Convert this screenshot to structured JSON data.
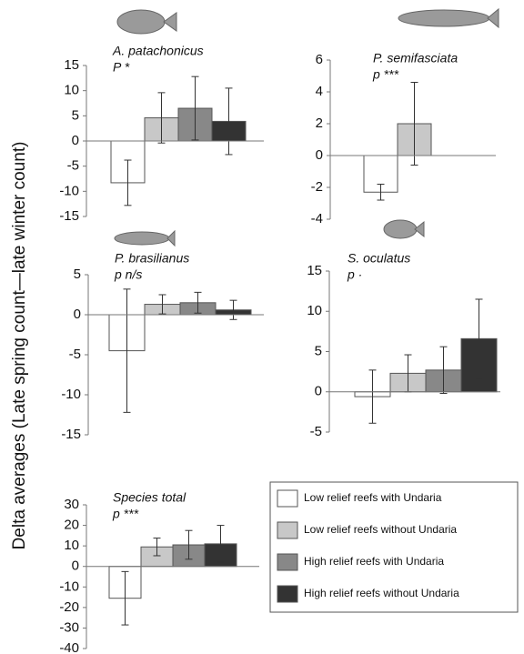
{
  "y_label": "Delta averages (Late spring count—late winter count)",
  "legend": [
    {
      "name": "Low relief reefs with Undaria",
      "color": "#ffffff"
    },
    {
      "name": "Low relief reefs without Undaria",
      "color": "#c8c8c8"
    },
    {
      "name": "High relief reefs with Undaria",
      "color": "#888888"
    },
    {
      "name": "High relief reefs without Undaria",
      "color": "#333333"
    }
  ],
  "chart_data": [
    {
      "type": "bar",
      "title": "A. patachonicus",
      "subtitle": "P *",
      "values": [
        -8.3,
        4.6,
        6.5,
        3.9
      ],
      "errors": [
        4.5,
        5,
        6.3,
        6.6
      ],
      "ylim": [
        -15,
        15
      ],
      "yticks": [
        -15,
        -10,
        -5,
        0,
        5,
        10,
        15
      ]
    },
    {
      "type": "bar",
      "title": "P. semifasciata",
      "subtitle": "p ***",
      "values": [
        -2.3,
        2.0,
        null,
        null
      ],
      "errors": [
        0.5,
        2.6,
        null,
        null
      ],
      "ylim": [
        -4,
        6
      ],
      "yticks": [
        -4,
        -2,
        0,
        2,
        4,
        6
      ]
    },
    {
      "type": "bar",
      "title": "P. brasilianus",
      "subtitle": "p n/s",
      "values": [
        -4.5,
        1.3,
        1.5,
        0.6
      ],
      "errors": [
        7.7,
        1.2,
        1.3,
        1.2
      ],
      "ylim": [
        -15,
        5
      ],
      "yticks": [
        -15,
        -10,
        -5,
        0,
        5
      ]
    },
    {
      "type": "bar",
      "title": "S. oculatus",
      "subtitle": "p ·",
      "values": [
        -0.6,
        2.3,
        2.7,
        6.6
      ],
      "errors": [
        3.3,
        2.3,
        2.9,
        4.9
      ],
      "ylim": [
        -5,
        15
      ],
      "yticks": [
        -5,
        0,
        5,
        10,
        15
      ]
    },
    {
      "type": "bar",
      "title": "Species total",
      "subtitle": "p ***",
      "values": [
        -15.5,
        9.5,
        10.5,
        11
      ],
      "errors": [
        13,
        4.3,
        7,
        9
      ],
      "ylim": [
        -40,
        30
      ],
      "yticks": [
        -40,
        -30,
        -20,
        -10,
        0,
        10,
        20,
        30
      ]
    }
  ]
}
